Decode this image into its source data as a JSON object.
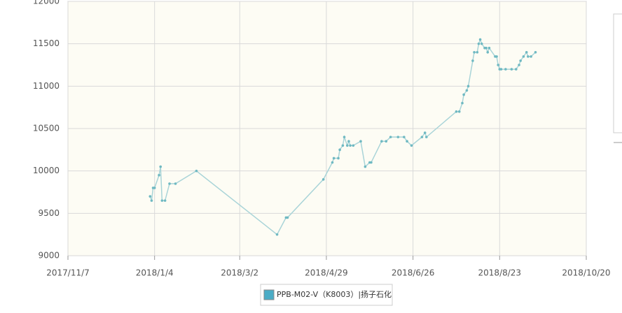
{
  "chart_data": {
    "type": "line",
    "x": [
      "2018/1/1",
      "2018/1/2",
      "2018/1/3",
      "2018/1/4",
      "2018/1/7",
      "2018/1/8",
      "2018/1/9",
      "2018/1/11",
      "2018/1/14",
      "2018/1/18",
      "2018/2/1",
      "2018/3/27",
      "2018/4/2",
      "2018/4/3",
      "2018/4/27",
      "2018/5/3",
      "2018/5/4",
      "2018/5/7",
      "2018/5/8",
      "2018/5/10",
      "2018/5/11",
      "2018/5/13",
      "2018/5/14",
      "2018/5/15",
      "2018/5/17",
      "2018/5/22",
      "2018/5/25",
      "2018/5/28",
      "2018/5/29",
      "2018/6/5",
      "2018/6/8",
      "2018/6/11",
      "2018/6/16",
      "2018/6/20",
      "2018/6/22",
      "2018/6/25",
      "2018/7/2",
      "2018/7/4",
      "2018/7/5",
      "2018/7/25",
      "2018/7/27",
      "2018/7/29",
      "2018/7/30",
      "2018/8/1",
      "2018/8/2",
      "2018/8/5",
      "2018/8/6",
      "2018/8/8",
      "2018/8/9",
      "2018/8/10",
      "2018/8/11",
      "2018/8/13",
      "2018/8/14",
      "2018/8/15",
      "2018/8/16",
      "2018/8/20",
      "2018/8/21",
      "2018/8/22",
      "2018/8/23",
      "2018/8/24",
      "2018/8/27",
      "2018/8/31",
      "2018/9/3",
      "2018/9/5",
      "2018/9/6",
      "2018/9/8",
      "2018/9/10",
      "2018/9/11",
      "2018/9/13",
      "2018/9/16"
    ],
    "series": [
      {
        "name": "PPB-M02-V（K8003）|扬子石化",
        "color": "#4bacc6",
        "values": [
          9700,
          9650,
          9800,
          9800,
          9950,
          10050,
          9650,
          9650,
          9850,
          9850,
          10000,
          9250,
          9450,
          9450,
          9900,
          10100,
          10150,
          10150,
          10250,
          10300,
          10400,
          10300,
          10350,
          10300,
          10300,
          10350,
          10050,
          10100,
          10100,
          10350,
          10350,
          10400,
          10400,
          10400,
          10350,
          10300,
          10400,
          10450,
          10400,
          10700,
          10700,
          10800,
          10900,
          10950,
          11000,
          11300,
          11400,
          11400,
          11500,
          11550,
          11500,
          11450,
          11450,
          11400,
          11450,
          11350,
          11350,
          11250,
          11200,
          11200,
          11200,
          11200,
          11200,
          11250,
          11300,
          11350,
          11400,
          11350,
          11350,
          11400
        ]
      }
    ],
    "xlim": [
      "2017/11/7",
      "2018/10/20"
    ],
    "xticks": [
      "2017/11/7",
      "2018/1/4",
      "2018/3/2",
      "2018/4/29",
      "2018/6/26",
      "2018/8/23",
      "2018/10/20"
    ],
    "ylim": [
      9000,
      12000
    ],
    "yticks": [
      9000,
      9500,
      10000,
      10500,
      11000,
      11500,
      12000
    ],
    "grid": true
  }
}
